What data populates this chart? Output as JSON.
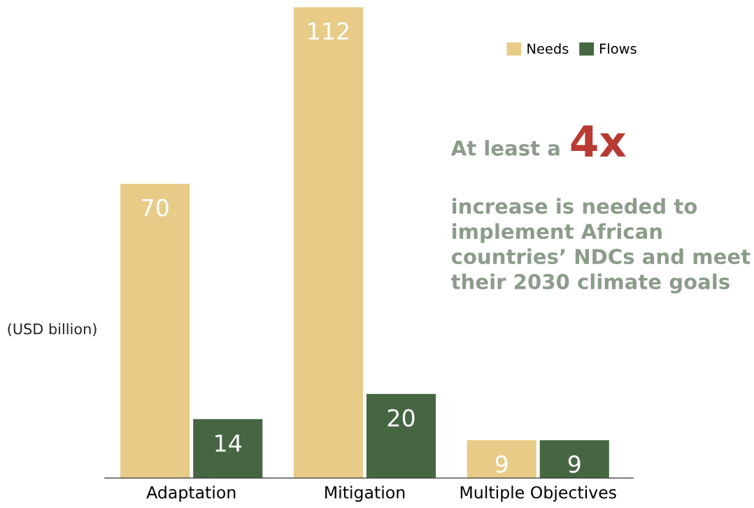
{
  "chart_data": {
    "type": "bar",
    "categories": [
      "Adaptation",
      "Mitigation",
      "Multiple Objectives"
    ],
    "series": [
      {
        "name": "Needs",
        "color": "#e7cb87",
        "values": [
          70,
          112,
          9
        ]
      },
      {
        "name": "Flows",
        "color": "#456641",
        "values": [
          14,
          20,
          9
        ]
      }
    ],
    "ylabel": "(USD billion)",
    "ylim": [
      0,
      112
    ],
    "tick_labels": "x",
    "data_labels": true,
    "legend": "top right",
    "annotations": [
      "At least a",
      "4x",
      "increase is needed to\nimplement African\ncountries’ NDCs and meet\ntheir 2030 climate goals"
    ]
  }
}
